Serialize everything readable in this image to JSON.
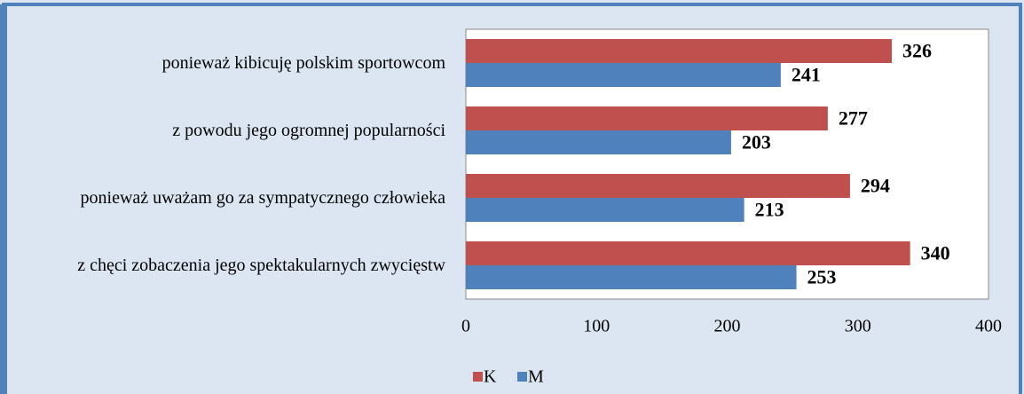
{
  "chart_data": {
    "type": "barh",
    "categories": [
      "ponieważ kibicuję polskim sportowcom",
      "z powodu jego ogromnej popularności",
      "ponieważ uważam go za sympatycznego człowieka",
      "z chęci zobaczenia jego spektakularnych zwycięstw"
    ],
    "series": [
      {
        "name": "K",
        "color": "#c0504d",
        "values": [
          326,
          277,
          294,
          340
        ]
      },
      {
        "name": "M",
        "color": "#4f81bd",
        "values": [
          241,
          203,
          213,
          253
        ]
      }
    ],
    "xlim": [
      0,
      400
    ],
    "xticks": [
      0,
      100,
      200,
      300,
      400
    ],
    "grid": false,
    "legend": "bottom"
  }
}
